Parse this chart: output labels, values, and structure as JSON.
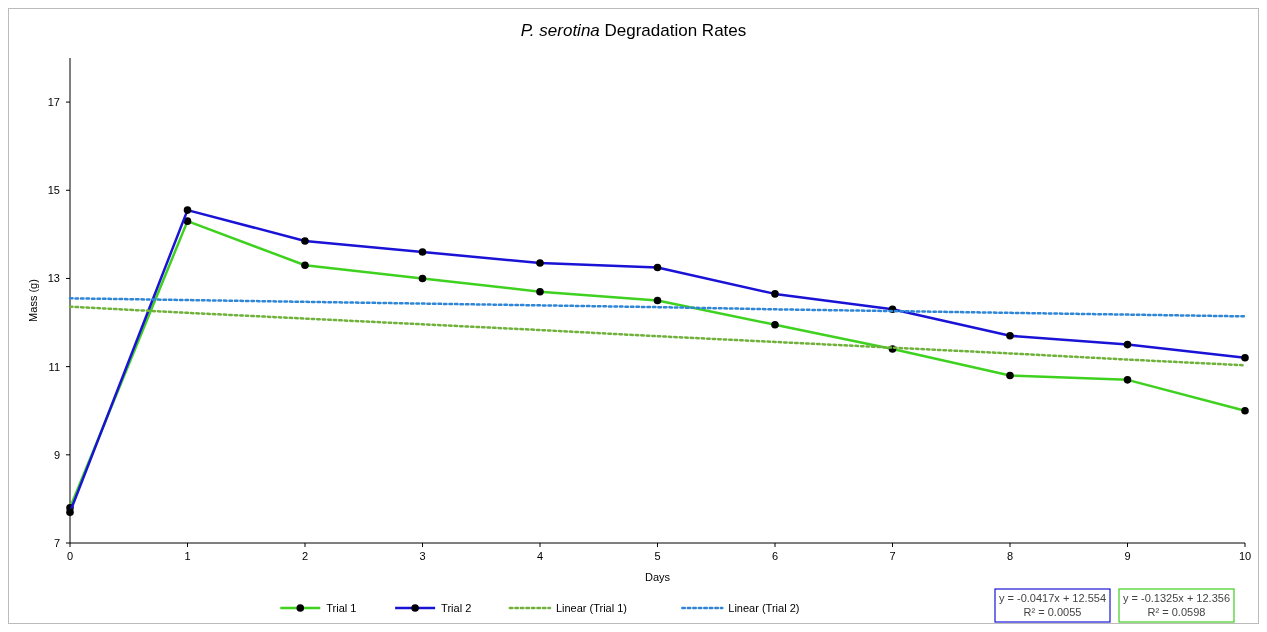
{
  "chart_data": {
    "type": "line",
    "title": "P. serotina Degradation Rates",
    "xlabel": "Days",
    "ylabel": "Mass (g)",
    "x": [
      0,
      1,
      2,
      3,
      4,
      5,
      6,
      7,
      8,
      9,
      10
    ],
    "series": [
      {
        "name": "Trial 1",
        "color": "#3fd11f",
        "marker": "circle",
        "line_style": "solid",
        "values": [
          7.8,
          14.3,
          13.3,
          13.0,
          12.7,
          12.5,
          11.95,
          11.4,
          10.8,
          10.7,
          10.0
        ]
      },
      {
        "name": "Trial 2",
        "color": "#1a13d6",
        "marker": "circle",
        "line_style": "solid",
        "values": [
          7.7,
          14.55,
          13.85,
          13.6,
          13.35,
          13.25,
          12.65,
          12.3,
          11.7,
          11.5,
          11.2
        ]
      },
      {
        "name": "Linear (Trial 1)",
        "color": "#6fb13b",
        "marker": "none",
        "line_style": "dotted",
        "values": [
          12.36,
          12.22,
          12.09,
          11.96,
          11.83,
          11.69,
          11.56,
          11.43,
          11.3,
          11.16,
          11.03
        ]
      },
      {
        "name": "Linear (Trial 2)",
        "color": "#2f86d6",
        "marker": "none",
        "line_style": "dotted",
        "values": [
          12.55,
          12.51,
          12.47,
          12.43,
          12.39,
          12.35,
          12.3,
          12.26,
          12.22,
          12.18,
          12.14
        ]
      }
    ],
    "xlim": [
      0,
      10
    ],
    "xticks": [
      0,
      1,
      2,
      3,
      4,
      5,
      6,
      7,
      8,
      9,
      10
    ],
    "ylim": [
      7,
      18
    ],
    "yticks": [
      7,
      9,
      11,
      13,
      15,
      17
    ],
    "grid": false,
    "legend": "bottom",
    "annotations": [
      "y = -0.0417x + 12.554\nR² = 0.0055",
      "y = -0.1325x + 12.356\nR² = 0.0598"
    ]
  }
}
